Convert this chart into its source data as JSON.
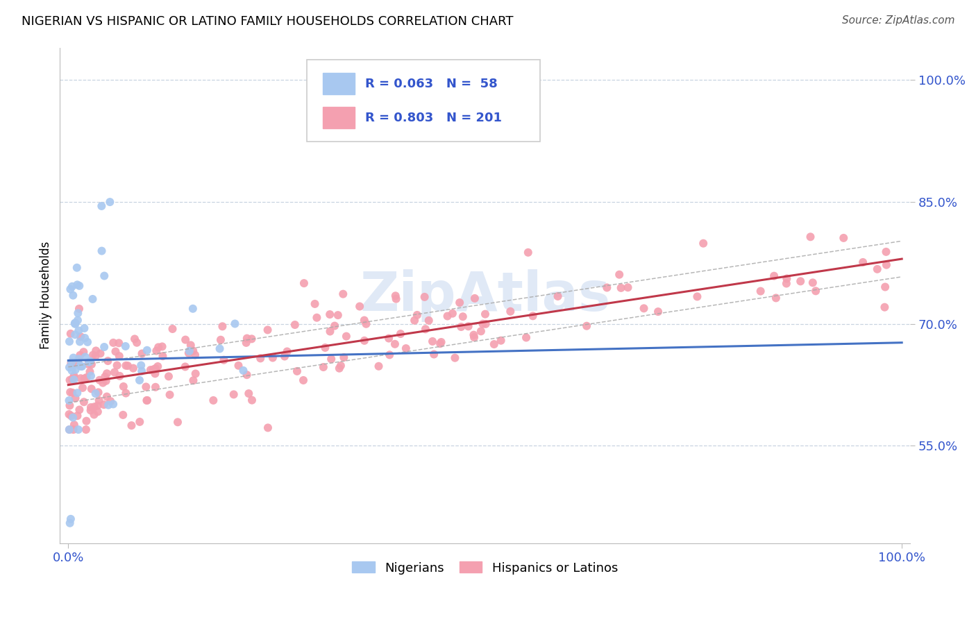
{
  "title": "NIGERIAN VS HISPANIC OR LATINO FAMILY HOUSEHOLDS CORRELATION CHART",
  "source": "Source: ZipAtlas.com",
  "ylabel": "Family Households",
  "xlim": [
    -0.01,
    1.01
  ],
  "ylim": [
    0.43,
    1.04
  ],
  "yticks": [
    0.55,
    0.7,
    0.85,
    1.0
  ],
  "ytick_labels": [
    "55.0%",
    "70.0%",
    "85.0%",
    "100.0%"
  ],
  "xtick_labels": [
    "0.0%",
    "100.0%"
  ],
  "legend_labels": [
    "Nigerians",
    "Hispanics or Latinos"
  ],
  "nigerian_R": 0.063,
  "nigerian_N": 58,
  "hispanic_R": 0.803,
  "hispanic_N": 201,
  "nigerian_color": "#a8c8f0",
  "hispanic_color": "#f4a0b0",
  "nigerian_line_color": "#4472c4",
  "hispanic_line_color": "#c0384a",
  "conf_line_color": "#aaaaaa",
  "watermark": "ZipAtlas",
  "watermark_color": "#c8d8f0",
  "grid_color": "#c8d4e0",
  "tick_color": "#3355cc",
  "title_fontsize": 13,
  "source_fontsize": 11,
  "tick_fontsize": 13
}
